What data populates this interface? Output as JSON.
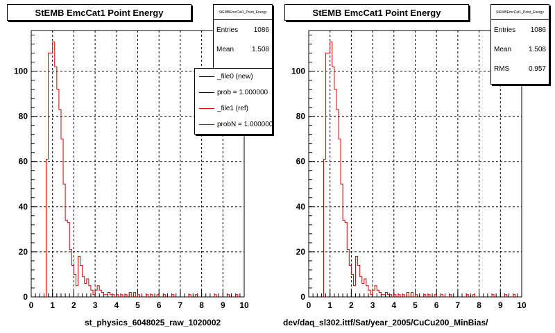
{
  "chart_data": [
    {
      "type": "histogram",
      "title": "StEMB EmcCat1 Point Energy",
      "xlabel": "st_physics_6048025_raw_1020002",
      "ylabel": "",
      "xlim": [
        0,
        10
      ],
      "ylim": [
        0,
        118
      ],
      "x_ticks": [
        "0",
        "1",
        "2",
        "3",
        "4",
        "5",
        "6",
        "7",
        "8",
        "9",
        "10"
      ],
      "y_ticks": [
        "0",
        "20",
        "40",
        "60",
        "80",
        "100"
      ],
      "grid": true,
      "bin_width": 0.1,
      "series": [
        {
          "name": "_file1 (ref)",
          "color": "#d40000",
          "x_bin_starts": [
            0.7,
            0.8,
            0.9,
            1.0,
            1.1,
            1.2,
            1.3,
            1.4,
            1.5,
            1.6,
            1.7,
            1.8,
            1.9,
            2.0,
            2.1,
            2.2,
            2.3,
            2.4,
            2.5,
            2.6,
            2.7,
            2.8,
            2.9,
            3.0,
            3.1,
            3.2,
            3.3,
            3.4,
            3.5,
            3.6,
            3.7,
            3.8,
            4.0,
            4.2,
            4.4,
            4.6,
            4.8,
            5.0,
            5.4,
            5.6,
            5.9,
            6.2,
            6.6,
            7.4,
            7.7,
            8.6,
            9.2,
            9.6
          ],
          "values": [
            61,
            108,
            108,
            113,
            102,
            92,
            83,
            70,
            50,
            34,
            33,
            21,
            14,
            10,
            5,
            18,
            14,
            9,
            6,
            8,
            5,
            3,
            1,
            3,
            5,
            3,
            2,
            1,
            1,
            2,
            1,
            1,
            1,
            1,
            1,
            2,
            2,
            1,
            1,
            1,
            1,
            1,
            1,
            1,
            1,
            1,
            1,
            1
          ]
        }
      ],
      "stats": {
        "name": "StEMBEmcCat1_Point_Energy",
        "entries_label": "Entries",
        "entries": "1086",
        "mean_label": "Mean",
        "mean": "1.508"
      },
      "legend": {
        "position": "top-right",
        "items": [
          {
            "label": "_file0 (new)",
            "color": "#000000"
          },
          {
            "label": "prob = 1.000000",
            "color": "#000000"
          },
          {
            "label": "_file1 (ref)",
            "color": "#d40000"
          },
          {
            "label": "probN = 1.000000",
            "color": "#d40000"
          }
        ]
      }
    },
    {
      "type": "histogram",
      "title": "StEMB EmcCat1 Point Energy",
      "xlabel": "dev/daq_sl302.ittf/Sat/year_2005/CuCu200_MinBias/",
      "ylabel": "",
      "xlim": [
        0,
        10
      ],
      "ylim": [
        0,
        118
      ],
      "x_ticks": [
        "0",
        "1",
        "2",
        "3",
        "4",
        "5",
        "6",
        "7",
        "8",
        "9",
        "10"
      ],
      "y_ticks": [
        "0",
        "20",
        "40",
        "60",
        "80",
        "100"
      ],
      "grid": true,
      "bin_width": 0.1,
      "series": [
        {
          "name": "",
          "color": "#d40000",
          "x_bin_starts": [
            0.7,
            0.8,
            0.9,
            1.0,
            1.1,
            1.2,
            1.3,
            1.4,
            1.5,
            1.6,
            1.7,
            1.8,
            1.9,
            2.0,
            2.1,
            2.2,
            2.3,
            2.4,
            2.5,
            2.6,
            2.7,
            2.8,
            2.9,
            3.0,
            3.1,
            3.2,
            3.3,
            3.4,
            3.5,
            3.6,
            3.7,
            3.8,
            4.0,
            4.2,
            4.4,
            4.6,
            4.8,
            5.0,
            5.4,
            5.6,
            5.9,
            6.2,
            6.6,
            7.4,
            7.7,
            8.6,
            9.2,
            9.6
          ],
          "values": [
            61,
            108,
            108,
            113,
            102,
            92,
            83,
            70,
            50,
            34,
            33,
            21,
            14,
            10,
            5,
            18,
            14,
            9,
            6,
            8,
            5,
            3,
            1,
            3,
            5,
            3,
            2,
            1,
            1,
            2,
            1,
            1,
            1,
            1,
            1,
            2,
            2,
            1,
            1,
            1,
            1,
            1,
            1,
            1,
            1,
            1,
            1,
            1
          ]
        }
      ],
      "stats": {
        "name": "StEMBEmcCat1_Point_Energy",
        "entries_label": "Entries",
        "entries": "1086",
        "mean_label": "Mean",
        "mean": "1.508",
        "rms_label": "RMS",
        "rms": "0.957"
      }
    }
  ]
}
